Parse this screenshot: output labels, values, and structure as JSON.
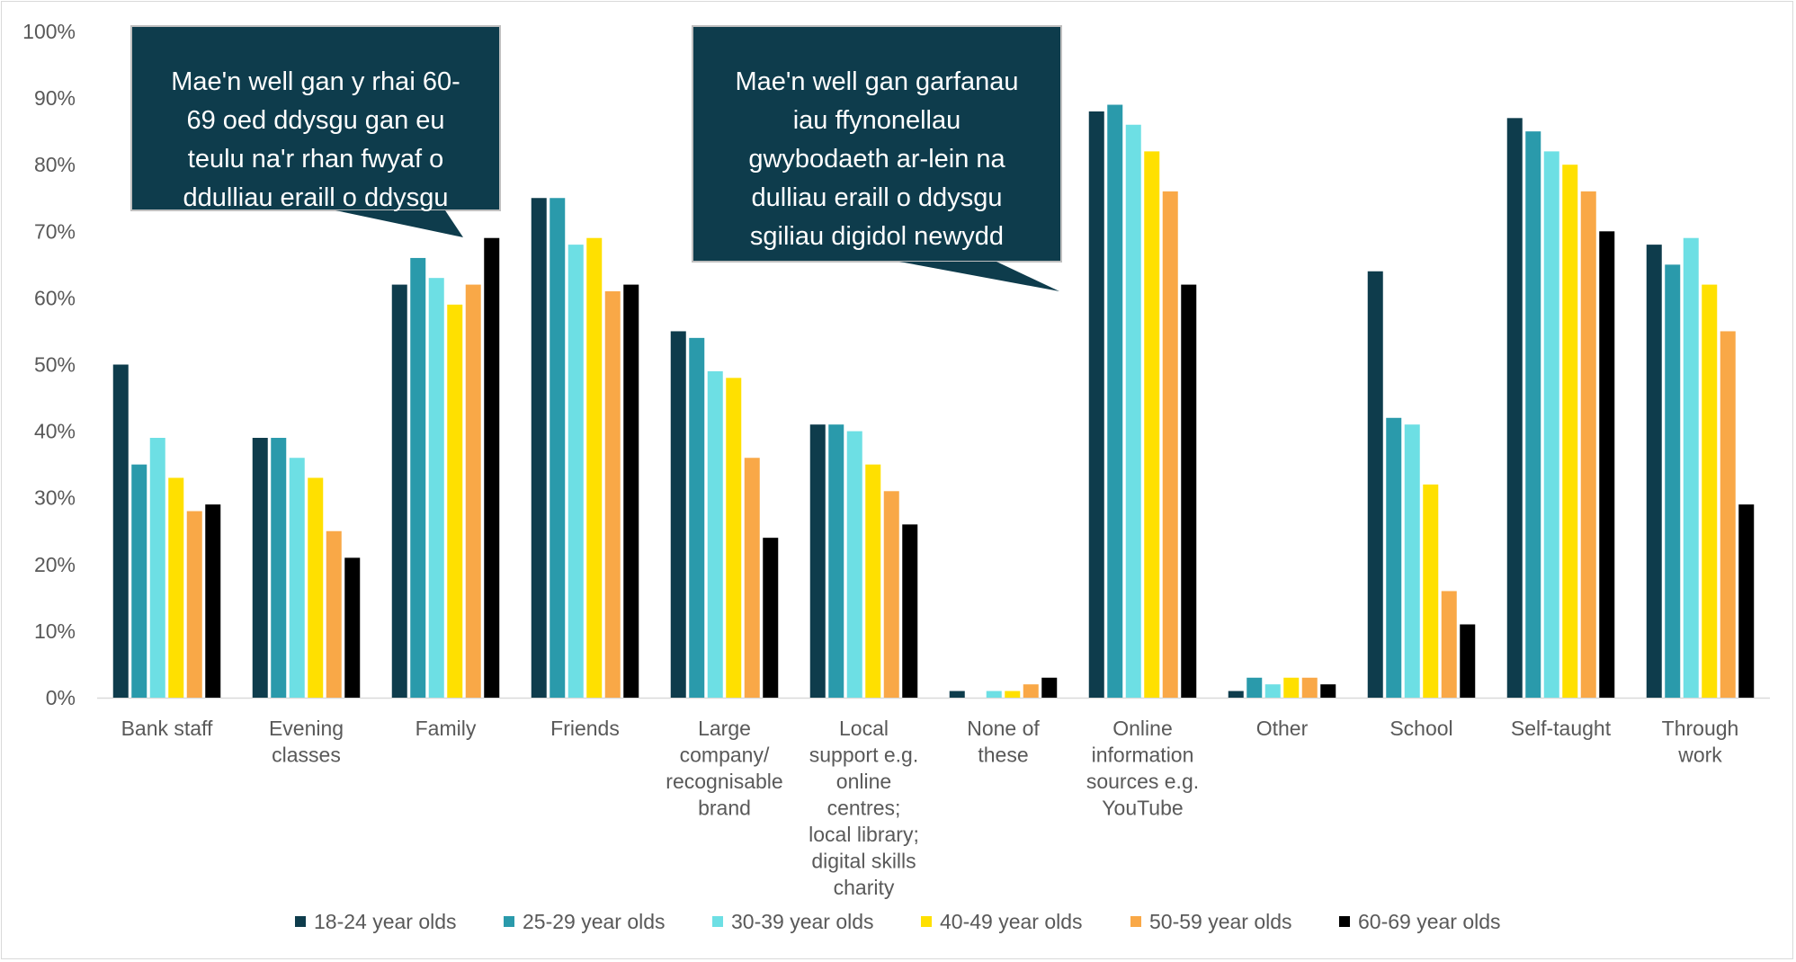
{
  "chart_data": {
    "type": "bar",
    "title": "",
    "xlabel": "",
    "ylabel": "",
    "ylim": [
      0,
      100
    ],
    "y_ticks": [
      "0%",
      "10%",
      "20%",
      "30%",
      "40%",
      "50%",
      "60%",
      "70%",
      "80%",
      "90%",
      "100%"
    ],
    "grid": false,
    "legend_position": "bottom",
    "categories": [
      [
        "Bank staff"
      ],
      [
        "Evening",
        "classes"
      ],
      [
        "Family"
      ],
      [
        "Friends"
      ],
      [
        "Large",
        "company/",
        "recognisable",
        "brand"
      ],
      [
        "Local",
        "support e.g.",
        "online",
        "centres;",
        "local library;",
        "digital skills",
        "charity"
      ],
      [
        "None of",
        "these"
      ],
      [
        "Online",
        "information",
        "sources e.g.",
        "YouTube"
      ],
      [
        "Other"
      ],
      [
        "School"
      ],
      [
        "Self-taught"
      ],
      [
        "Through",
        "work"
      ]
    ],
    "series": [
      {
        "name": "18-24 year olds",
        "color": "#0e3c4c",
        "values": [
          50,
          39,
          62,
          75,
          55,
          41,
          1,
          88,
          1,
          64,
          87,
          68
        ]
      },
      {
        "name": "25-29 year olds",
        "color": "#2a9aab",
        "values": [
          35,
          39,
          66,
          75,
          54,
          41,
          0,
          89,
          3,
          42,
          85,
          65
        ]
      },
      {
        "name": "30-39 year olds",
        "color": "#6ddfe4",
        "values": [
          39,
          36,
          63,
          68,
          49,
          40,
          1,
          86,
          2,
          41,
          82,
          69
        ]
      },
      {
        "name": "40-49 year olds",
        "color": "#ffe000",
        "values": [
          33,
          33,
          59,
          69,
          48,
          35,
          1,
          82,
          3,
          32,
          80,
          62
        ]
      },
      {
        "name": "50-59 year olds",
        "color": "#f9a847",
        "values": [
          28,
          25,
          62,
          61,
          36,
          31,
          2,
          76,
          3,
          16,
          76,
          55
        ]
      },
      {
        "name": "60-69 year olds",
        "color": "#000000",
        "values": [
          29,
          21,
          69,
          62,
          24,
          26,
          3,
          62,
          2,
          11,
          70,
          29
        ]
      }
    ],
    "annotations": [
      {
        "lines": [
          "Mae'n well gan y rhai 60-",
          "69 oed ddysgu gan eu",
          "teulu na'r rhan fwyaf o",
          "ddulliau eraill o ddysgu"
        ]
      },
      {
        "lines": [
          "Mae'n well gan garfanau",
          "iau ffynonellau",
          "gwybodaeth ar-lein na",
          "dulliau eraill o ddysgu",
          "sgiliau digidol newydd"
        ]
      }
    ]
  }
}
